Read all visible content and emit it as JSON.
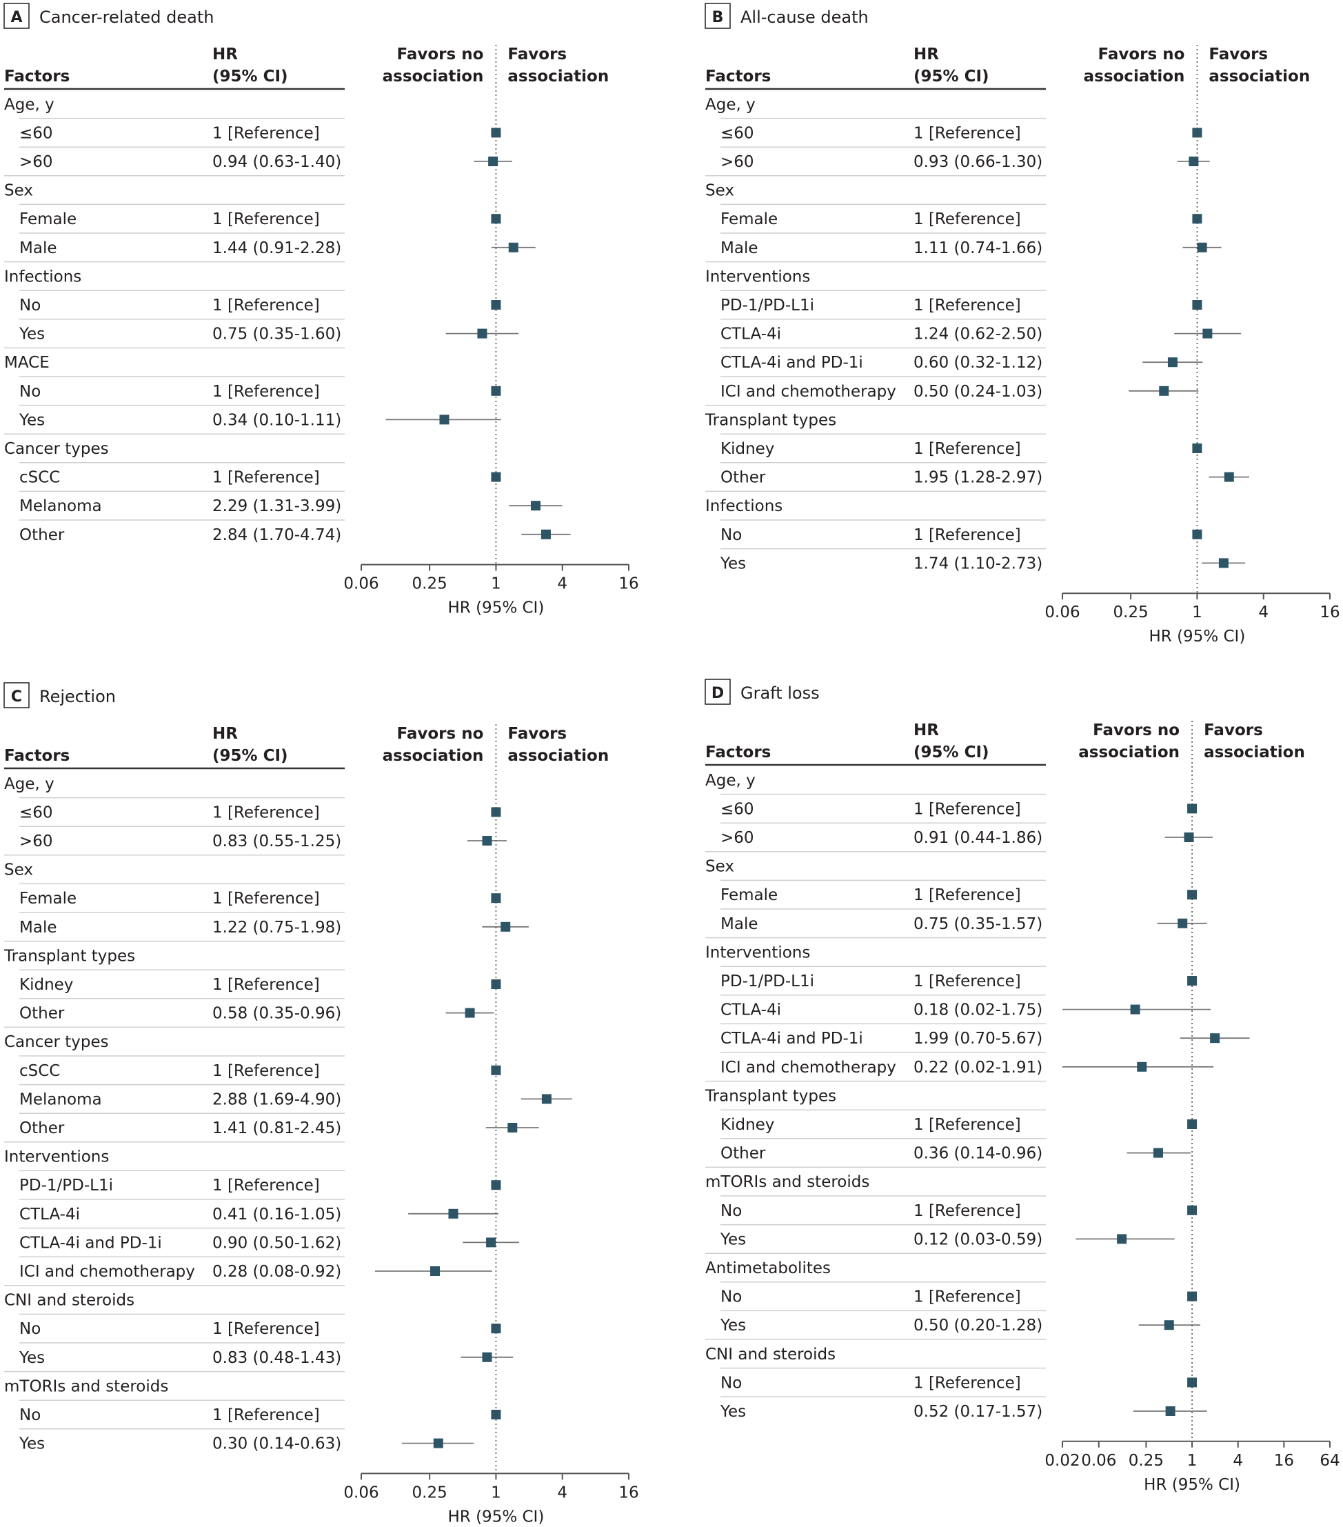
{
  "figure": {
    "header_factors": "Factors",
    "header_hr_line1": "HR",
    "header_hr_line2": "(95% CI)",
    "favors_no_line1": "Favors no",
    "favors_no_line2": "association",
    "favors_line1": "Favors",
    "favors_line2": "association",
    "marker_color": "#2d5566",
    "ci_color": "#777777"
  },
  "chart_data": [
    {
      "type": "forest",
      "panel": "A",
      "title": "Cancer-related death",
      "xlabel": "HR (95% CI)",
      "xscale": "log2",
      "xticks": [
        0.06,
        0.25,
        1,
        4,
        16
      ],
      "xtick_labels": [
        "0.06",
        "0.25",
        "1",
        "4",
        "16"
      ],
      "xlim": [
        0.06,
        16
      ],
      "reference_line": 1,
      "rows": [
        {
          "kind": "group",
          "label": "Age, y"
        },
        {
          "kind": "item",
          "label": "≤60",
          "text": "1 [Reference]",
          "hr": 1
        },
        {
          "kind": "item",
          "label": ">60",
          "text": "0.94 (0.63-1.40)",
          "hr": 0.94,
          "lo": 0.63,
          "hi": 1.4
        },
        {
          "kind": "group",
          "label": "Sex"
        },
        {
          "kind": "item",
          "label": "Female",
          "text": "1 [Reference]",
          "hr": 1
        },
        {
          "kind": "item",
          "label": "Male",
          "text": "1.44 (0.91-2.28)",
          "hr": 1.44,
          "lo": 0.91,
          "hi": 2.28
        },
        {
          "kind": "group",
          "label": "Infections"
        },
        {
          "kind": "item",
          "label": "No",
          "text": "1 [Reference]",
          "hr": 1
        },
        {
          "kind": "item",
          "label": "Yes",
          "text": "0.75 (0.35-1.60)",
          "hr": 0.75,
          "lo": 0.35,
          "hi": 1.6
        },
        {
          "kind": "group",
          "label": "MACE"
        },
        {
          "kind": "item",
          "label": "No",
          "text": "1 [Reference]",
          "hr": 1
        },
        {
          "kind": "item",
          "label": "Yes",
          "text": "0.34 (0.10-1.11)",
          "hr": 0.34,
          "lo": 0.1,
          "hi": 1.11
        },
        {
          "kind": "group",
          "label": "Cancer types"
        },
        {
          "kind": "item",
          "label": "cSCC",
          "text": "1 [Reference]",
          "hr": 1
        },
        {
          "kind": "item",
          "label": "Melanoma",
          "text": "2.29 (1.31-3.99)",
          "hr": 2.29,
          "lo": 1.31,
          "hi": 3.99
        },
        {
          "kind": "item",
          "label": "Other",
          "text": "2.84 (1.70-4.74)",
          "hr": 2.84,
          "lo": 1.7,
          "hi": 4.74
        }
      ]
    },
    {
      "type": "forest",
      "panel": "B",
      "title": "All-cause death",
      "xlabel": "HR (95% CI)",
      "xscale": "log2",
      "xticks": [
        0.06,
        0.25,
        1,
        4,
        16
      ],
      "xtick_labels": [
        "0.06",
        "0.25",
        "1",
        "4",
        "16"
      ],
      "xlim": [
        0.06,
        16
      ],
      "reference_line": 1,
      "rows": [
        {
          "kind": "group",
          "label": "Age, y"
        },
        {
          "kind": "item",
          "label": "≤60",
          "text": "1 [Reference]",
          "hr": 1
        },
        {
          "kind": "item",
          "label": ">60",
          "text": "0.93 (0.66-1.30)",
          "hr": 0.93,
          "lo": 0.66,
          "hi": 1.3
        },
        {
          "kind": "group",
          "label": "Sex"
        },
        {
          "kind": "item",
          "label": "Female",
          "text": "1 [Reference]",
          "hr": 1
        },
        {
          "kind": "item",
          "label": "Male",
          "text": "1.11 (0.74-1.66)",
          "hr": 1.11,
          "lo": 0.74,
          "hi": 1.66
        },
        {
          "kind": "group",
          "label": "Interventions"
        },
        {
          "kind": "item",
          "label": "PD-1/PD-L1i",
          "text": "1 [Reference]",
          "hr": 1
        },
        {
          "kind": "item",
          "label": "CTLA-4i",
          "text": "1.24 (0.62-2.50)",
          "hr": 1.24,
          "lo": 0.62,
          "hi": 2.5
        },
        {
          "kind": "item",
          "label": "CTLA-4i and PD-1i",
          "text": "0.60 (0.32-1.12)",
          "hr": 0.6,
          "lo": 0.32,
          "hi": 1.12
        },
        {
          "kind": "item",
          "label": "ICI and chemotherapy",
          "text": "0.50 (0.24-1.03)",
          "hr": 0.5,
          "lo": 0.24,
          "hi": 1.03
        },
        {
          "kind": "group",
          "label": "Transplant types"
        },
        {
          "kind": "item",
          "label": "Kidney",
          "text": "1 [Reference]",
          "hr": 1
        },
        {
          "kind": "item",
          "label": "Other",
          "text": "1.95 (1.28-2.97)",
          "hr": 1.95,
          "lo": 1.28,
          "hi": 2.97
        },
        {
          "kind": "group",
          "label": "Infections"
        },
        {
          "kind": "item",
          "label": "No",
          "text": "1 [Reference]",
          "hr": 1
        },
        {
          "kind": "item",
          "label": "Yes",
          "text": "1.74 (1.10-2.73)",
          "hr": 1.74,
          "lo": 1.1,
          "hi": 2.73
        }
      ]
    },
    {
      "type": "forest",
      "panel": "C",
      "title": "Rejection",
      "xlabel": "HR (95% CI)",
      "xscale": "log2",
      "xticks": [
        0.06,
        0.25,
        1,
        4,
        16
      ],
      "xtick_labels": [
        "0.06",
        "0.25",
        "1",
        "4",
        "16"
      ],
      "xlim": [
        0.06,
        16
      ],
      "reference_line": 1,
      "rows": [
        {
          "kind": "group",
          "label": "Age, y"
        },
        {
          "kind": "item",
          "label": "≤60",
          "text": "1 [Reference]",
          "hr": 1
        },
        {
          "kind": "item",
          "label": ">60",
          "text": "0.83 (0.55-1.25)",
          "hr": 0.83,
          "lo": 0.55,
          "hi": 1.25
        },
        {
          "kind": "group",
          "label": "Sex"
        },
        {
          "kind": "item",
          "label": "Female",
          "text": "1 [Reference]",
          "hr": 1
        },
        {
          "kind": "item",
          "label": "Male",
          "text": "1.22 (0.75-1.98)",
          "hr": 1.22,
          "lo": 0.75,
          "hi": 1.98
        },
        {
          "kind": "group",
          "label": "Transplant types"
        },
        {
          "kind": "item",
          "label": "Kidney",
          "text": "1 [Reference]",
          "hr": 1
        },
        {
          "kind": "item",
          "label": "Other",
          "text": "0.58 (0.35-0.96)",
          "hr": 0.58,
          "lo": 0.35,
          "hi": 0.96
        },
        {
          "kind": "group",
          "label": "Cancer types"
        },
        {
          "kind": "item",
          "label": "cSCC",
          "text": "1 [Reference]",
          "hr": 1
        },
        {
          "kind": "item",
          "label": "Melanoma",
          "text": "2.88 (1.69-4.90)",
          "hr": 2.88,
          "lo": 1.69,
          "hi": 4.9
        },
        {
          "kind": "item",
          "label": "Other",
          "text": "1.41 (0.81-2.45)",
          "hr": 1.41,
          "lo": 0.81,
          "hi": 2.45
        },
        {
          "kind": "group",
          "label": "Interventions"
        },
        {
          "kind": "item",
          "label": "PD-1/PD-L1i",
          "text": "1 [Reference]",
          "hr": 1
        },
        {
          "kind": "item",
          "label": "CTLA-4i",
          "text": "0.41 (0.16-1.05)",
          "hr": 0.41,
          "lo": 0.16,
          "hi": 1.05
        },
        {
          "kind": "item",
          "label": "CTLA-4i and PD-1i",
          "text": "0.90 (0.50-1.62)",
          "hr": 0.9,
          "lo": 0.5,
          "hi": 1.62
        },
        {
          "kind": "item",
          "label": "ICI and chemotherapy",
          "text": "0.28 (0.08-0.92)",
          "hr": 0.28,
          "lo": 0.08,
          "hi": 0.92
        },
        {
          "kind": "group",
          "label": "CNI and steroids"
        },
        {
          "kind": "item",
          "label": "No",
          "text": "1 [Reference]",
          "hr": 1
        },
        {
          "kind": "item",
          "label": "Yes",
          "text": "0.83 (0.48-1.43)",
          "hr": 0.83,
          "lo": 0.48,
          "hi": 1.43
        },
        {
          "kind": "group",
          "label": "mTORIs and steroids"
        },
        {
          "kind": "item",
          "label": "No",
          "text": "1 [Reference]",
          "hr": 1
        },
        {
          "kind": "item",
          "label": "Yes",
          "text": "0.30 (0.14-0.63)",
          "hr": 0.3,
          "lo": 0.14,
          "hi": 0.63
        }
      ]
    },
    {
      "type": "forest",
      "panel": "D",
      "title": "Graft loss",
      "xlabel": "HR (95% CI)",
      "xscale": "log2",
      "xticks": [
        0.02,
        0.06,
        0.25,
        1,
        4,
        16,
        64
      ],
      "xtick_labels": [
        "0.02",
        "0.06",
        "0.25",
        "1",
        "4",
        "16",
        "64"
      ],
      "xlim": [
        0.02,
        64
      ],
      "reference_line": 1,
      "rows": [
        {
          "kind": "group",
          "label": "Age, y"
        },
        {
          "kind": "item",
          "label": "≤60",
          "text": "1 [Reference]",
          "hr": 1
        },
        {
          "kind": "item",
          "label": ">60",
          "text": "0.91 (0.44-1.86)",
          "hr": 0.91,
          "lo": 0.44,
          "hi": 1.86
        },
        {
          "kind": "group",
          "label": "Sex"
        },
        {
          "kind": "item",
          "label": "Female",
          "text": "1 [Reference]",
          "hr": 1
        },
        {
          "kind": "item",
          "label": "Male",
          "text": "0.75 (0.35-1.57)",
          "hr": 0.75,
          "lo": 0.35,
          "hi": 1.57
        },
        {
          "kind": "group",
          "label": "Interventions"
        },
        {
          "kind": "item",
          "label": "PD-1/PD-L1i",
          "text": "1 [Reference]",
          "hr": 1
        },
        {
          "kind": "item",
          "label": "CTLA-4i",
          "text": "0.18 (0.02-1.75)",
          "hr": 0.18,
          "lo": 0.02,
          "hi": 1.75
        },
        {
          "kind": "item",
          "label": "CTLA-4i and PD-1i",
          "text": "1.99 (0.70-5.67)",
          "hr": 1.99,
          "lo": 0.7,
          "hi": 5.67
        },
        {
          "kind": "item",
          "label": "ICI and chemotherapy",
          "text": "0.22 (0.02-1.91)",
          "hr": 0.22,
          "lo": 0.02,
          "hi": 1.91
        },
        {
          "kind": "group",
          "label": "Transplant types"
        },
        {
          "kind": "item",
          "label": "Kidney",
          "text": "1 [Reference]",
          "hr": 1
        },
        {
          "kind": "item",
          "label": "Other",
          "text": "0.36 (0.14-0.96)",
          "hr": 0.36,
          "lo": 0.14,
          "hi": 0.96
        },
        {
          "kind": "group",
          "label": "mTORIs and steroids"
        },
        {
          "kind": "item",
          "label": "No",
          "text": "1 [Reference]",
          "hr": 1
        },
        {
          "kind": "item",
          "label": "Yes",
          "text": "0.12 (0.03-0.59)",
          "hr": 0.12,
          "lo": 0.03,
          "hi": 0.59
        },
        {
          "kind": "group",
          "label": "Antimetabolites"
        },
        {
          "kind": "item",
          "label": "No",
          "text": "1 [Reference]",
          "hr": 1
        },
        {
          "kind": "item",
          "label": "Yes",
          "text": "0.50 (0.20-1.28)",
          "hr": 0.5,
          "lo": 0.2,
          "hi": 1.28
        },
        {
          "kind": "group",
          "label": "CNI and steroids"
        },
        {
          "kind": "item",
          "label": "No",
          "text": "1 [Reference]",
          "hr": 1
        },
        {
          "kind": "item",
          "label": "Yes",
          "text": "0.52 (0.17-1.57)",
          "hr": 0.52,
          "lo": 0.17,
          "hi": 1.57
        }
      ]
    }
  ]
}
